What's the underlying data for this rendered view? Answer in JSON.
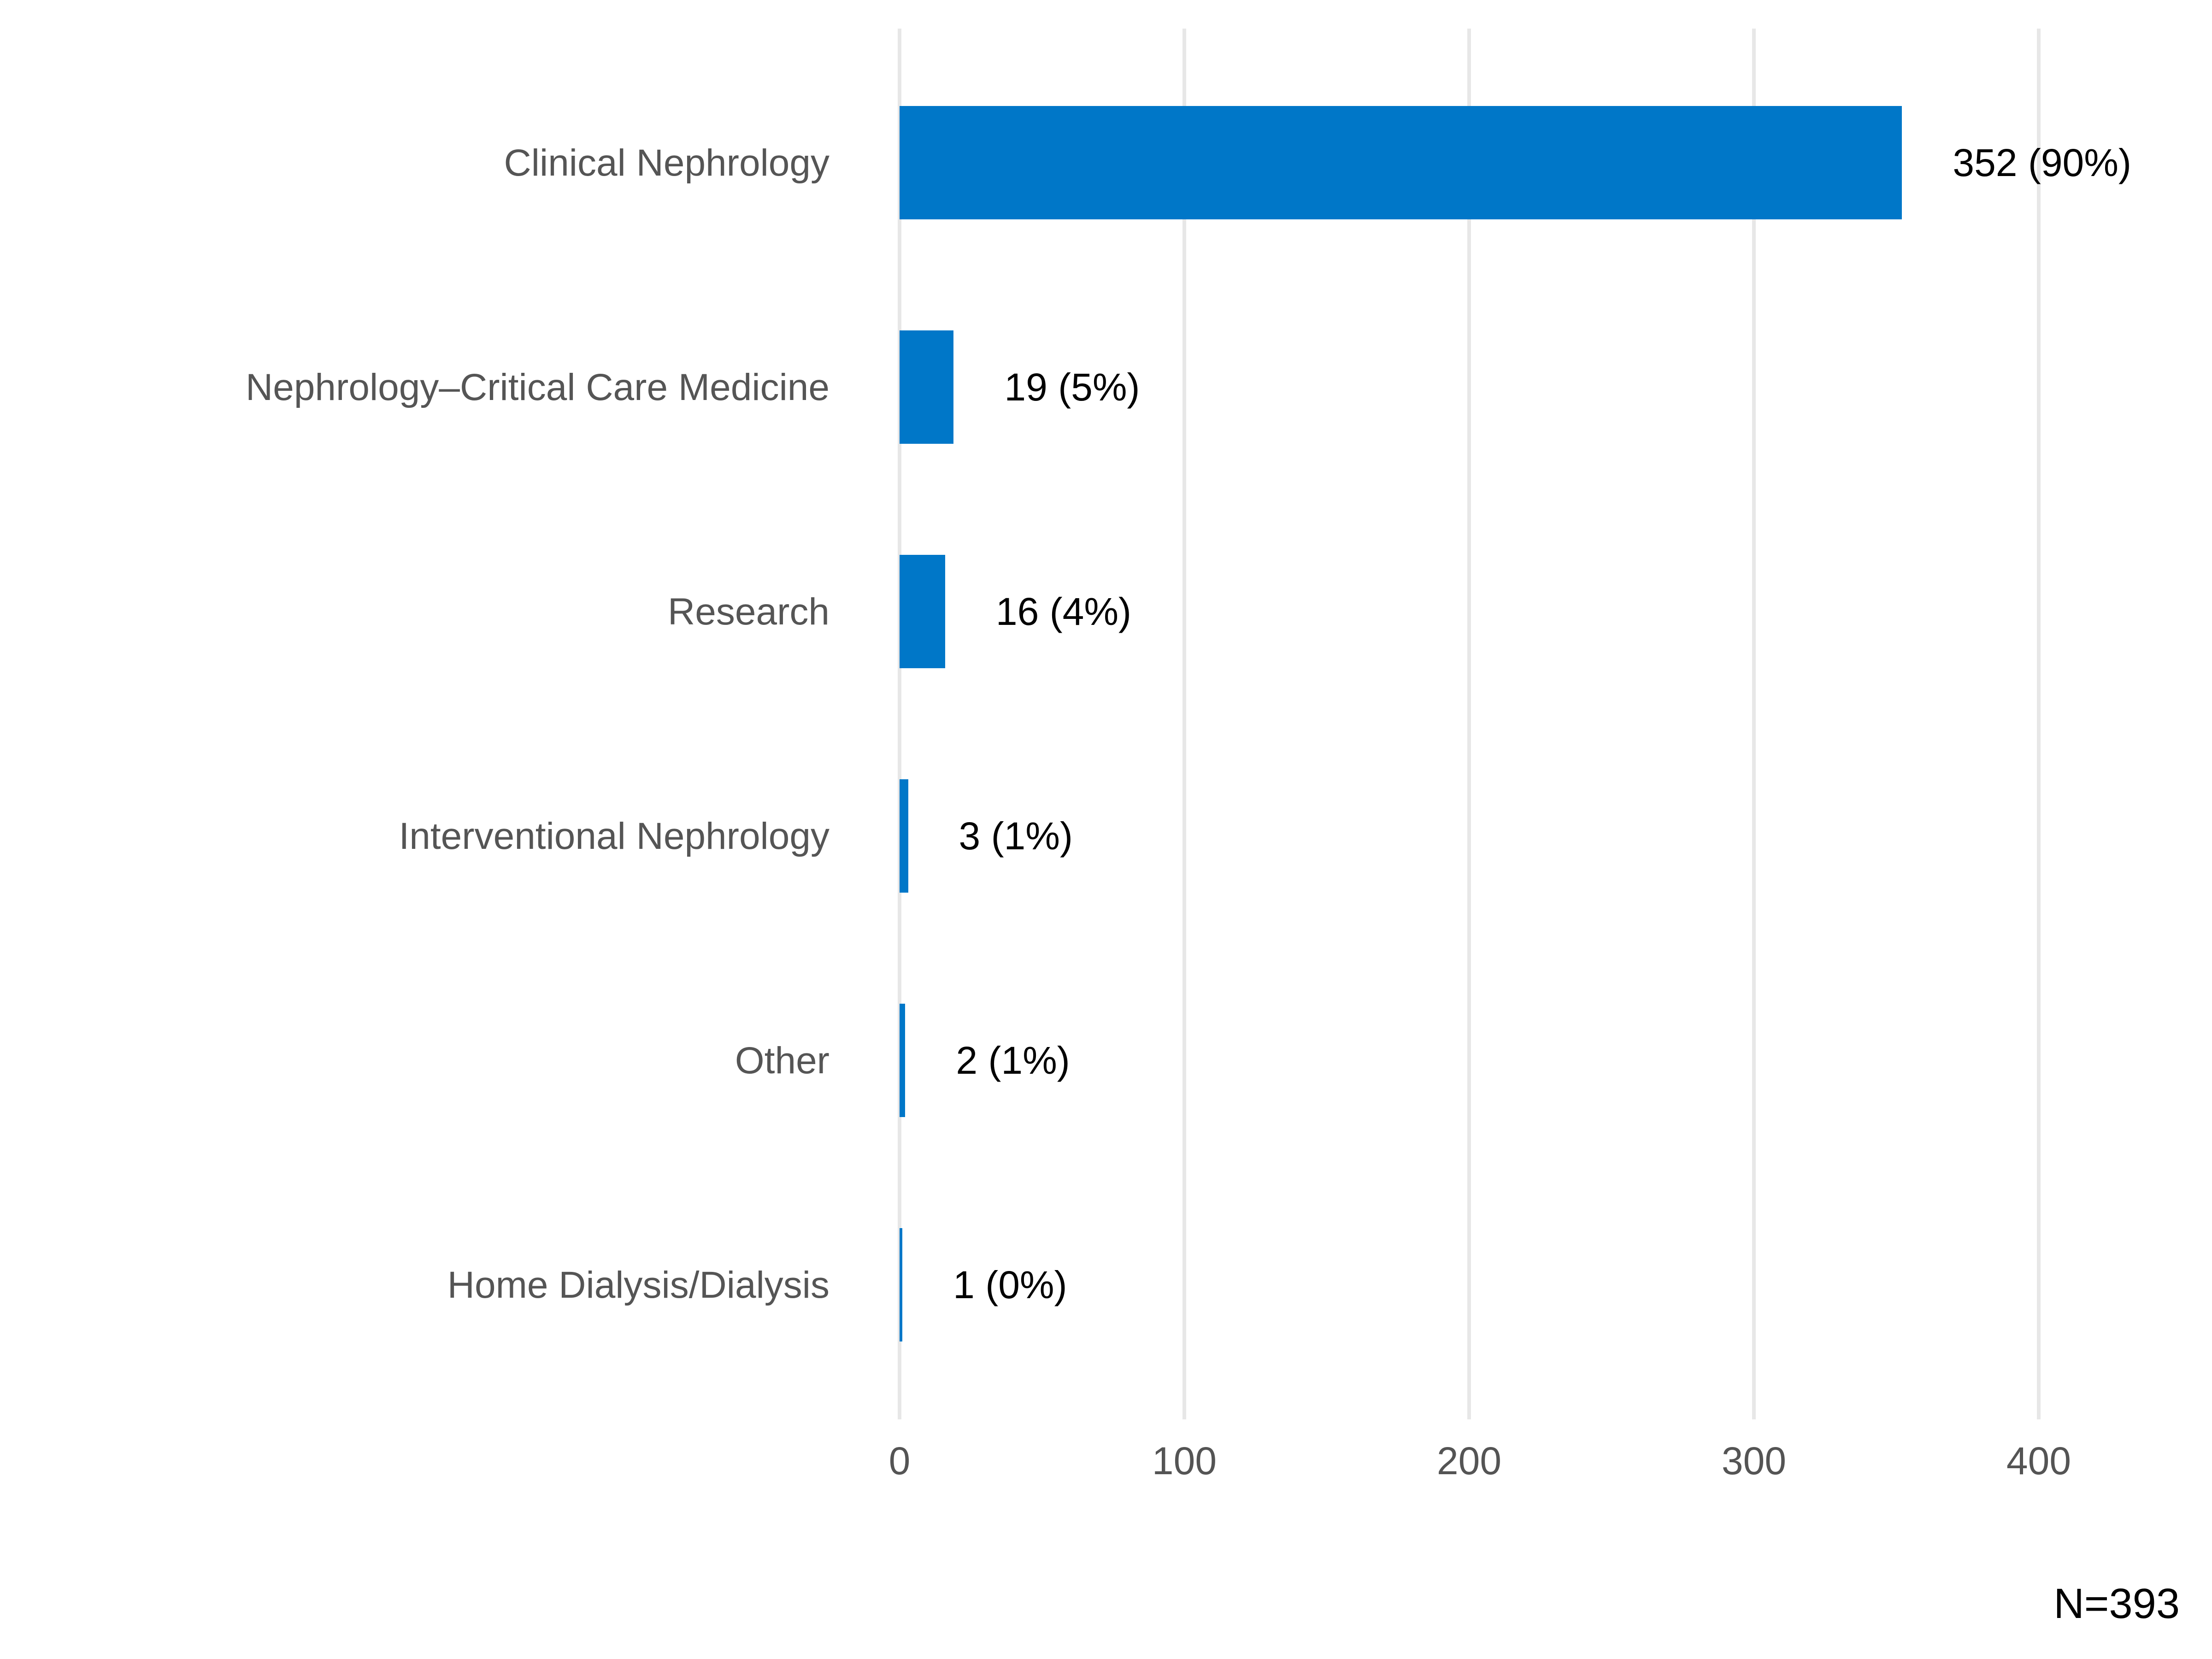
{
  "chart_data": {
    "type": "bar",
    "orientation": "horizontal",
    "title": "",
    "xlabel": "",
    "ylabel": "",
    "categories": [
      "Clinical Nephrology",
      "Nephrology–Critical Care Medicine",
      "Research",
      "Interventional Nephrology",
      "Other",
      "Home Dialysis/Dialysis"
    ],
    "values": [
      352,
      19,
      16,
      3,
      2,
      1
    ],
    "percents": [
      90,
      5,
      4,
      1,
      1,
      0
    ],
    "value_labels": [
      "352 (90%)",
      "19 (5%)",
      "16 (4%)",
      "3 (1%)",
      "2 (1%)",
      "1 (0%)"
    ],
    "x_ticks": [
      0,
      100,
      200,
      300,
      400
    ],
    "x_tick_labels": [
      "0",
      "100",
      "200",
      "300",
      "400"
    ],
    "xlim": [
      0,
      400
    ],
    "grid": "vertical major gridlines only",
    "legend": "none",
    "note": "N=393",
    "colors": {
      "bar": "#0077C8",
      "category_label": "#555555",
      "value_label": "#000000",
      "tick_label": "#545454",
      "gridline": "#E7E7E7",
      "background": "#FFFFFF"
    }
  }
}
